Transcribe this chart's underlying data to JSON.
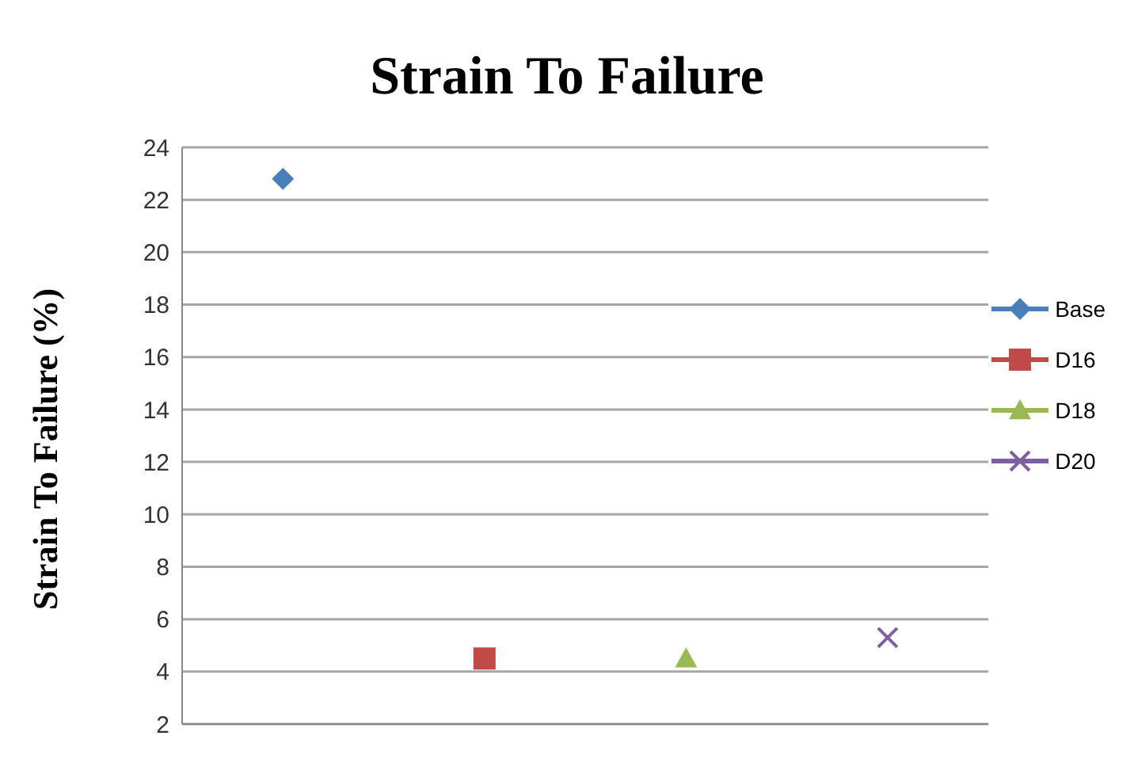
{
  "chart_data": {
    "type": "line",
    "title": "Strain To Failure",
    "ylabel": "Strain To Failure (%)",
    "categories": [
      null,
      null,
      null,
      null
    ],
    "series": [
      {
        "name": "Base",
        "color": "#4a7ebb",
        "marker": "diamond",
        "values": [
          22.8,
          null,
          null,
          null
        ]
      },
      {
        "name": "D16",
        "color": "#be4b48",
        "marker": "square",
        "values": [
          null,
          4.5,
          null,
          null
        ]
      },
      {
        "name": "D18",
        "color": "#98b954",
        "marker": "triangle",
        "values": [
          null,
          null,
          4.5,
          null
        ]
      },
      {
        "name": "D20",
        "color": "#7d60a0",
        "marker": "cross",
        "values": [
          null,
          null,
          null,
          5.3
        ]
      }
    ],
    "ylim": [
      2,
      24
    ],
    "yticks": [
      2,
      4,
      6,
      8,
      10,
      12,
      14,
      16,
      18,
      20,
      22,
      24
    ],
    "grid": "y",
    "legend": "right",
    "tick_labels": "y"
  }
}
